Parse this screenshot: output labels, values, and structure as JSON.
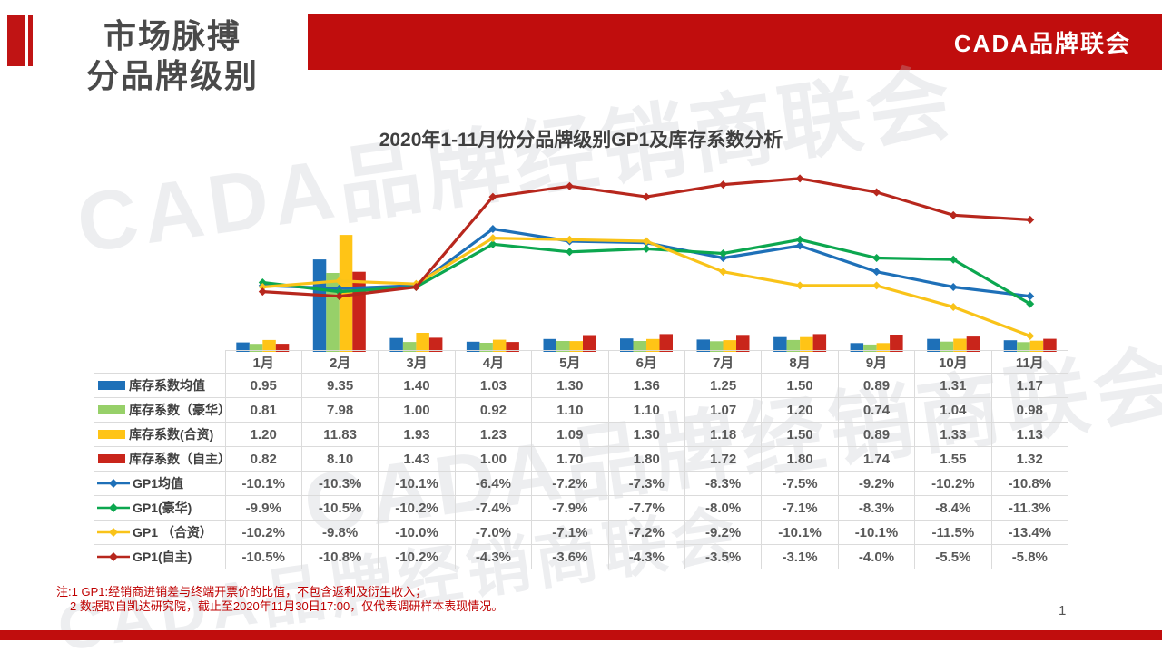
{
  "header": {
    "title_line1": "市场脉搏",
    "title_line2": "分品牌级别",
    "brand": "CADA品牌联会"
  },
  "watermark": {
    "text": "CADA品牌经销商联会"
  },
  "page_number": "1",
  "footnote": {
    "line1": "注:1  GP1:经销商进销差与终端开票价的比值，不包含返利及衍生收入；",
    "line2": "2 数据取自凯达研究院，截止至2020年11月30日17:00，仅代表调研样本表现情况。"
  },
  "colors": {
    "theme_red": "#C00D0D",
    "bar_blue": "#1E70B8",
    "bar_green": "#97D069",
    "bar_yellow": "#FFC416",
    "bar_red": "#C9251B",
    "line_blue": "#1E70B8",
    "line_green": "#0CA74F",
    "line_yellow": "#F9C319",
    "line_red": "#B7271D"
  },
  "chart_data": {
    "type": "combo-bar-line",
    "title": "2020年1-11月份分品牌级别GP1及库存系数分析",
    "categories": [
      "1月",
      "2月",
      "3月",
      "4月",
      "5月",
      "6月",
      "7月",
      "8月",
      "9月",
      "10月",
      "11月"
    ],
    "grid": false,
    "legend_position": "table-left-column",
    "bar_axis": {
      "label": "库存系数",
      "min": 0,
      "max": 14,
      "visible": false
    },
    "line_axis": {
      "label": "GP1",
      "unit": "%",
      "min": -14,
      "max": 0,
      "visible": false
    },
    "bar_series": [
      {
        "name": "库存系数均值",
        "color": "#1E70B8",
        "values": [
          0.95,
          9.35,
          1.4,
          1.03,
          1.3,
          1.36,
          1.25,
          1.5,
          0.89,
          1.31,
          1.17
        ]
      },
      {
        "name": "库存系数（豪华）",
        "color": "#97D069",
        "values": [
          0.81,
          7.98,
          1.0,
          0.92,
          1.1,
          1.1,
          1.07,
          1.2,
          0.74,
          1.04,
          0.98
        ]
      },
      {
        "name": "库存系数(合资)",
        "color": "#FFC416",
        "values": [
          1.2,
          11.83,
          1.93,
          1.23,
          1.09,
          1.3,
          1.18,
          1.5,
          0.89,
          1.33,
          1.13
        ]
      },
      {
        "name": "库存系数（自主）",
        "color": "#C9251B",
        "values": [
          0.82,
          8.1,
          1.43,
          1.0,
          1.7,
          1.8,
          1.72,
          1.8,
          1.74,
          1.55,
          1.32
        ]
      }
    ],
    "line_series": [
      {
        "name": "GP1均值",
        "color": "#1E70B8",
        "values": [
          -10.1,
          -10.3,
          -10.1,
          -6.4,
          -7.2,
          -7.3,
          -8.3,
          -7.5,
          -9.2,
          -10.2,
          -10.8
        ]
      },
      {
        "name": "GP1(豪华)",
        "color": "#0CA74F",
        "values": [
          -9.9,
          -10.5,
          -10.2,
          -7.4,
          -7.9,
          -7.7,
          -8.0,
          -7.1,
          -8.3,
          -8.4,
          -11.3
        ]
      },
      {
        "name": "GP1 （合资）",
        "color": "#F9C319",
        "values": [
          -10.2,
          -9.8,
          -10.0,
          -7.0,
          -7.1,
          -7.2,
          -9.2,
          -10.1,
          -10.1,
          -11.5,
          -13.4
        ]
      },
      {
        "name": "GP1(自主)",
        "color": "#B7271D",
        "values": [
          -10.5,
          -10.8,
          -10.2,
          -4.3,
          -3.6,
          -4.3,
          -3.5,
          -3.1,
          -4.0,
          -5.5,
          -5.8
        ]
      }
    ]
  },
  "table": {
    "corner_label": "",
    "months": [
      "1月",
      "2月",
      "3月",
      "4月",
      "5月",
      "6月",
      "7月",
      "8月",
      "9月",
      "10月",
      "11月"
    ],
    "rows": [
      {
        "label": "库存系数均值",
        "swatch": "bar",
        "color": "#1E70B8",
        "cells": [
          "0.95",
          "9.35",
          "1.40",
          "1.03",
          "1.30",
          "1.36",
          "1.25",
          "1.50",
          "0.89",
          "1.31",
          "1.17"
        ]
      },
      {
        "label": "库存系数（豪华）",
        "swatch": "bar",
        "color": "#97D069",
        "cells": [
          "0.81",
          "7.98",
          "1.00",
          "0.92",
          "1.10",
          "1.10",
          "1.07",
          "1.20",
          "0.74",
          "1.04",
          "0.98"
        ]
      },
      {
        "label": "库存系数(合资)",
        "swatch": "bar",
        "color": "#FFC416",
        "cells": [
          "1.20",
          "11.83",
          "1.93",
          "1.23",
          "1.09",
          "1.30",
          "1.18",
          "1.50",
          "0.89",
          "1.33",
          "1.13"
        ]
      },
      {
        "label": "库存系数（自主）",
        "swatch": "bar",
        "color": "#C9251B",
        "cells": [
          "0.82",
          "8.10",
          "1.43",
          "1.00",
          "1.70",
          "1.80",
          "1.72",
          "1.80",
          "1.74",
          "1.55",
          "1.32"
        ]
      },
      {
        "label": "GP1均值",
        "swatch": "line",
        "color": "#1E70B8",
        "cells": [
          "-10.1%",
          "-10.3%",
          "-10.1%",
          "-6.4%",
          "-7.2%",
          "-7.3%",
          "-8.3%",
          "-7.5%",
          "-9.2%",
          "-10.2%",
          "-10.8%"
        ]
      },
      {
        "label": "GP1(豪华)",
        "swatch": "line",
        "color": "#0CA74F",
        "cells": [
          "-9.9%",
          "-10.5%",
          "-10.2%",
          "-7.4%",
          "-7.9%",
          "-7.7%",
          "-8.0%",
          "-7.1%",
          "-8.3%",
          "-8.4%",
          "-11.3%"
        ]
      },
      {
        "label": "GP1 （合资）",
        "swatch": "line",
        "color": "#F9C319",
        "cells": [
          "-10.2%",
          "-9.8%",
          "-10.0%",
          "-7.0%",
          "-7.1%",
          "-7.2%",
          "-9.2%",
          "-10.1%",
          "-10.1%",
          "-11.5%",
          "-13.4%"
        ]
      },
      {
        "label": "GP1(自主)",
        "swatch": "line",
        "color": "#B7271D",
        "cells": [
          "-10.5%",
          "-10.8%",
          "-10.2%",
          "-4.3%",
          "-3.6%",
          "-4.3%",
          "-3.5%",
          "-3.1%",
          "-4.0%",
          "-5.5%",
          "-5.8%"
        ]
      }
    ]
  }
}
